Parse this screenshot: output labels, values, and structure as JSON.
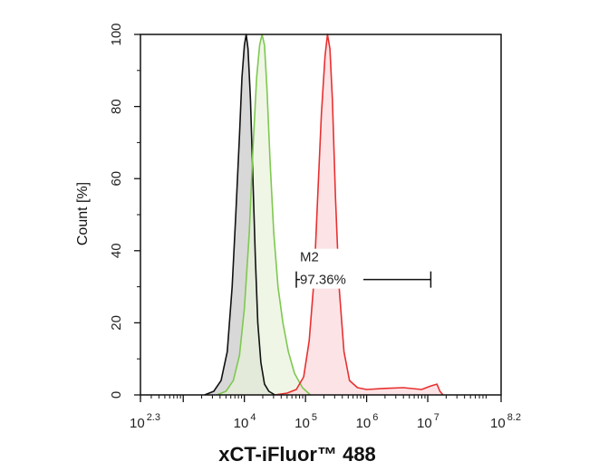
{
  "chart_data": {
    "type": "area",
    "xlabel": "xCT-iFluor™ 488",
    "ylabel": "Count [%]",
    "x_scale": "log",
    "xlim": [
      2.3,
      8.2
    ],
    "ylim": [
      0,
      100
    ],
    "x_ticks": [
      {
        "base": "10",
        "exp": "2.3",
        "value": 2.3
      },
      {
        "base": "10",
        "exp": "4",
        "value": 4
      },
      {
        "base": "10",
        "exp": "5",
        "value": 5
      },
      {
        "base": "10",
        "exp": "6",
        "value": 6
      },
      {
        "base": "10",
        "exp": "7",
        "value": 7
      },
      {
        "base": "10",
        "exp": "8.2",
        "value": 8.2
      }
    ],
    "y_ticks": [
      "0",
      "20",
      "40",
      "60",
      "80",
      "100"
    ],
    "series": [
      {
        "color": "#111111",
        "fill": "#c8c8c8",
        "x": [
          3.35,
          3.5,
          3.62,
          3.72,
          3.8,
          3.86,
          3.92,
          3.96,
          4.0,
          4.03,
          4.06,
          4.1,
          4.14,
          4.18,
          4.22,
          4.27,
          4.33,
          4.4,
          4.5
        ],
        "y": [
          0,
          1,
          4,
          12,
          30,
          50,
          72,
          88,
          97,
          100,
          96,
          82,
          60,
          38,
          20,
          9,
          3,
          1,
          0
        ]
      },
      {
        "color": "#7ec850",
        "fill": "#e8f2dc",
        "x": [
          3.55,
          3.7,
          3.82,
          3.92,
          4.0,
          4.08,
          4.14,
          4.2,
          4.25,
          4.29,
          4.33,
          4.37,
          4.42,
          4.48,
          4.55,
          4.63,
          4.72,
          4.82,
          4.95,
          5.08
        ],
        "y": [
          0,
          1,
          4,
          11,
          24,
          45,
          68,
          88,
          97,
          100,
          97,
          85,
          65,
          45,
          30,
          20,
          12,
          6,
          2,
          0
        ]
      },
      {
        "color": "#e83030",
        "fill": "#fbd9dc",
        "x": [
          4.5,
          4.7,
          4.85,
          4.97,
          5.06,
          5.14,
          5.2,
          5.26,
          5.32,
          5.36,
          5.4,
          5.44,
          5.49,
          5.55,
          5.63,
          5.72,
          5.85,
          6.0,
          6.3,
          6.6,
          6.9,
          7.05,
          7.15,
          7.2,
          7.25
        ],
        "y": [
          0,
          0.5,
          1.5,
          5,
          15,
          32,
          55,
          78,
          94,
          100,
          96,
          82,
          55,
          30,
          12,
          4,
          2,
          1.5,
          1.8,
          2,
          1.5,
          2.5,
          3,
          1,
          0
        ]
      }
    ],
    "gates": [
      {
        "name": "M2",
        "percent": "97.36%",
        "x_start": 4.85,
        "x_end": 7.05,
        "y": 32
      }
    ]
  }
}
